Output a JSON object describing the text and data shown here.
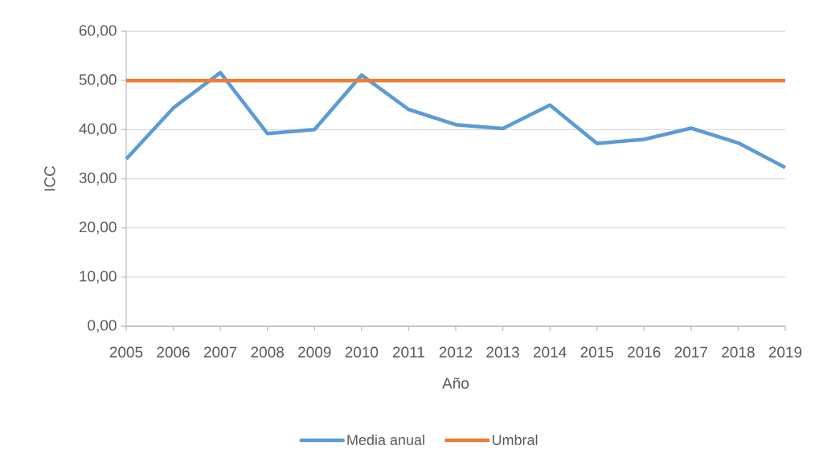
{
  "chart_data": {
    "type": "line",
    "xlabel": "Año",
    "ylabel": "ICC",
    "categories": [
      "2005",
      "2006",
      "2007",
      "2008",
      "2009",
      "2010",
      "2011",
      "2012",
      "2013",
      "2014",
      "2015",
      "2016",
      "2017",
      "2018",
      "2019"
    ],
    "series": [
      {
        "name": "Media anual",
        "color": "#5b9bd5",
        "values": [
          34.0,
          44.4,
          51.6,
          39.2,
          40.0,
          51.1,
          44.1,
          41.0,
          40.2,
          45.0,
          37.2,
          38.0,
          40.3,
          37.3,
          32.3
        ]
      },
      {
        "name": "Umbral",
        "color": "#ed7d31",
        "values": [
          50,
          50,
          50,
          50,
          50,
          50,
          50,
          50,
          50,
          50,
          50,
          50,
          50,
          50,
          50
        ]
      }
    ],
    "ylim": [
      0,
      60
    ],
    "yticks": [
      {
        "value": 0,
        "label": "0,00"
      },
      {
        "value": 10,
        "label": "10,00"
      },
      {
        "value": 20,
        "label": "20,00"
      },
      {
        "value": 30,
        "label": "30,00"
      },
      {
        "value": 40,
        "label": "40,00"
      },
      {
        "value": 50,
        "label": "50,00"
      },
      {
        "value": 60,
        "label": "60,00"
      }
    ],
    "grid": "y",
    "legend": "bottom",
    "marker": "none",
    "line_style": "solid"
  }
}
